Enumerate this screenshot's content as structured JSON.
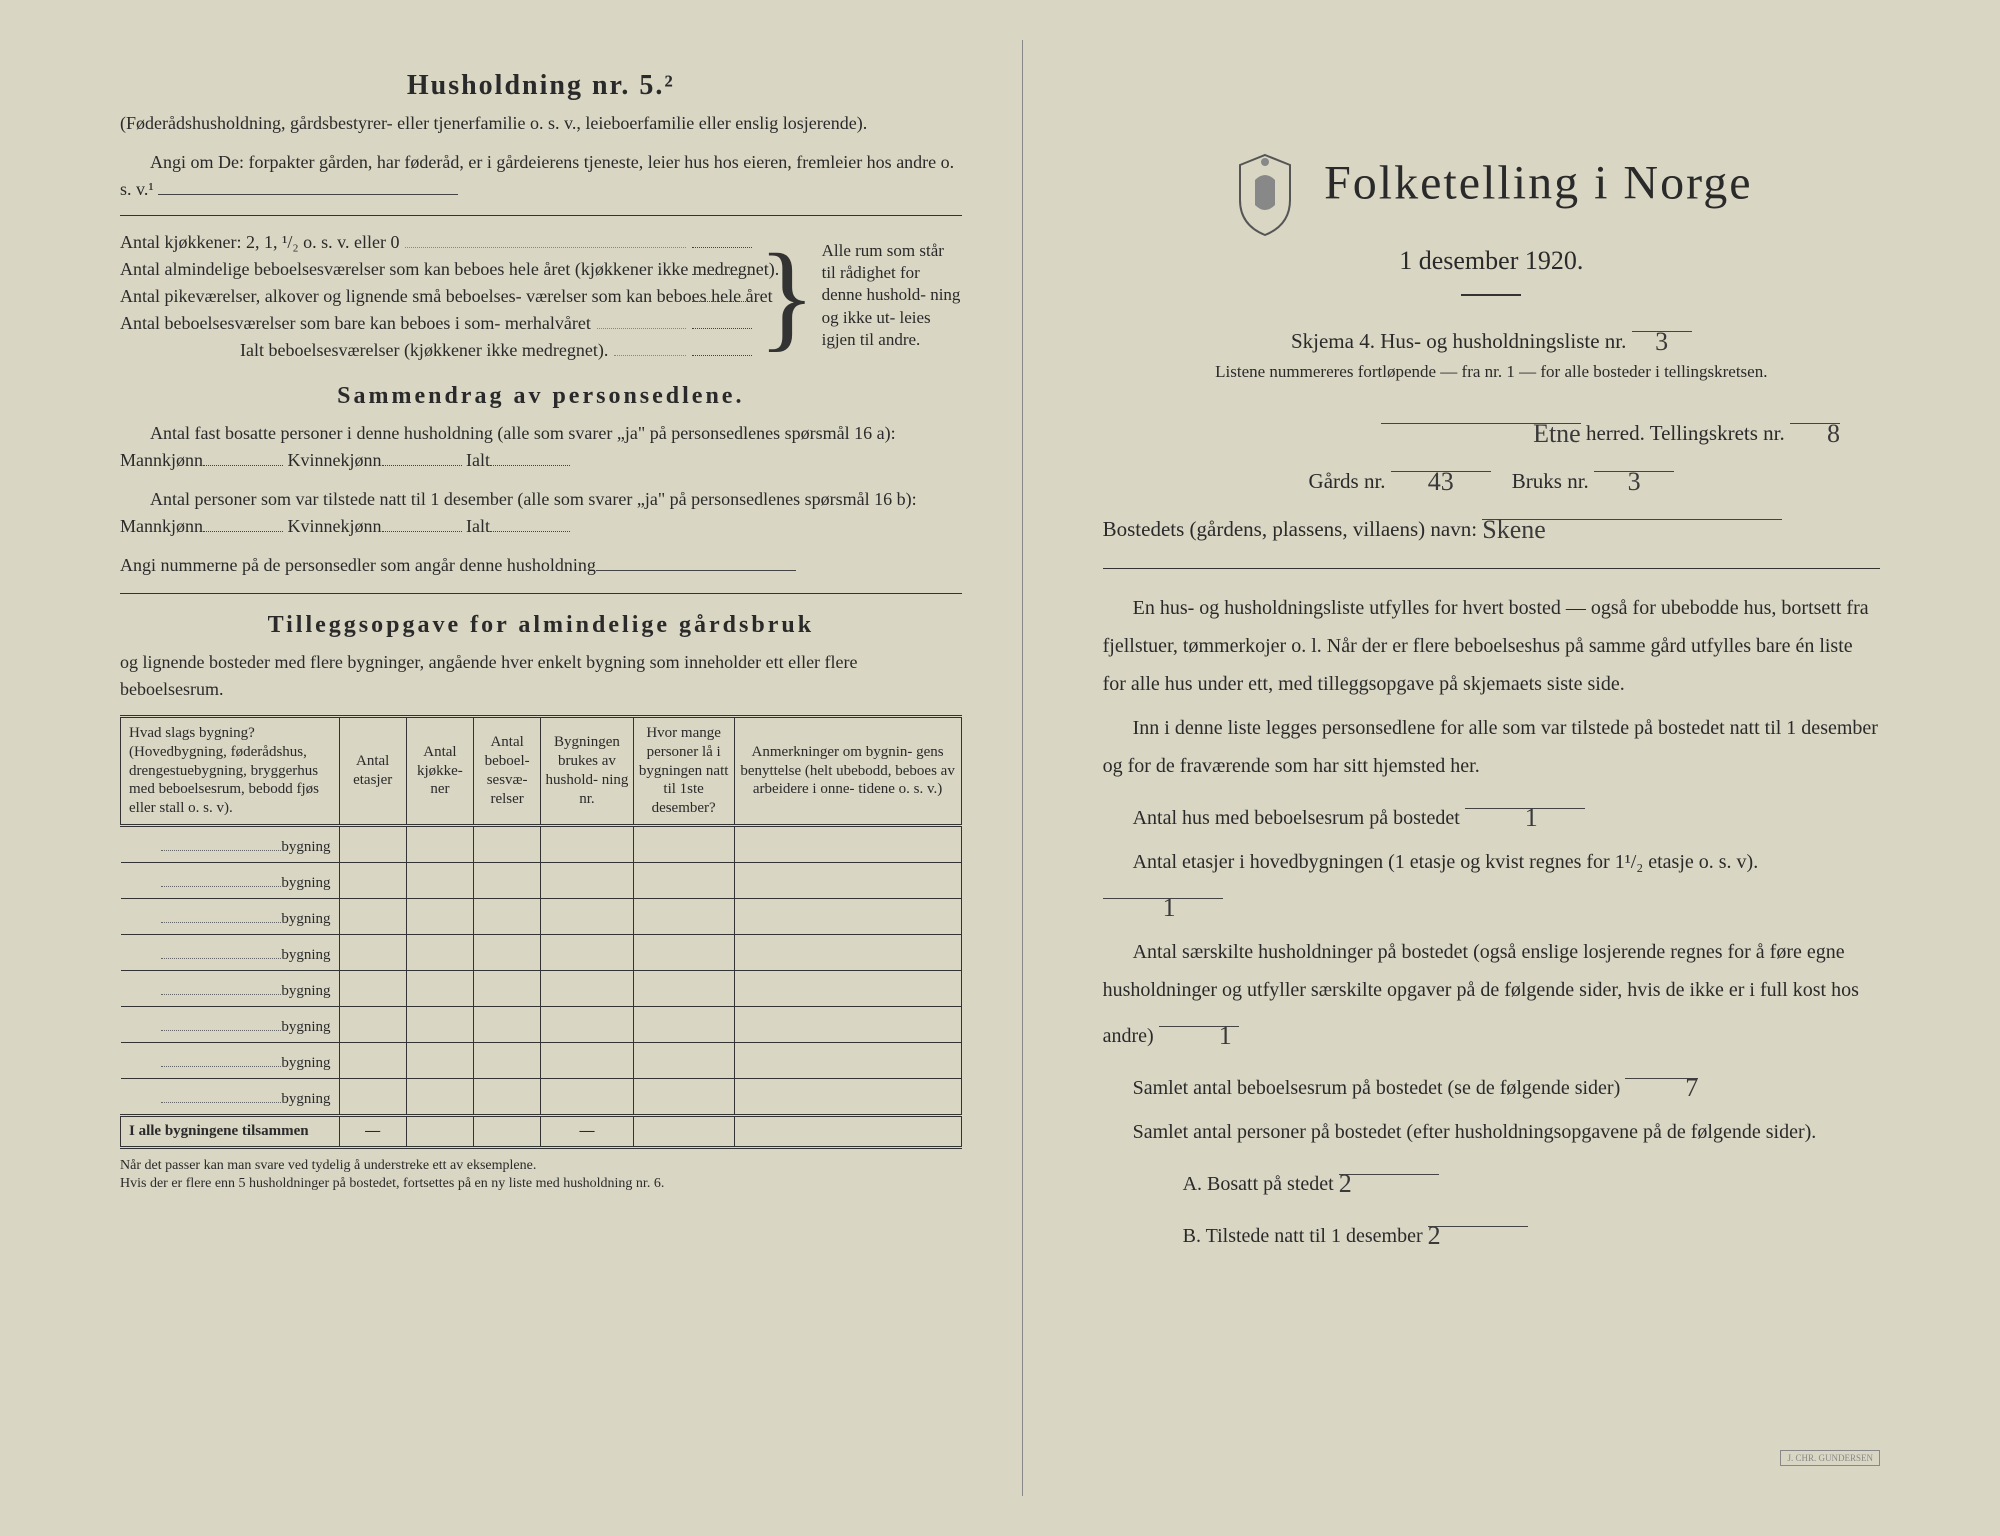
{
  "left": {
    "heading": "Husholdning nr. 5.²",
    "intro1": "(Føderådshusholdning, gårdsbestyrer- eller tjenerfamilie o. s. v., leieboerfamilie eller enslig losjerende).",
    "intro2": "Angi om De:  forpakter gården, har føderåd, er i gårdeierens tjeneste, leier hus hos eieren, fremleier hos andre o. s. v.¹",
    "kitchenRow": "Antal kjøkkener: 2, 1, ¹/₂ o. s. v. eller 0",
    "rooms": [
      "Antal almindelige beboelsesværelser som kan beboes hele året (kjøkkener ikke medregnet).",
      "Antal pikeværelser, alkover og lignende små beboelses- værelser som kan beboes hele året",
      "Antal beboelsesværelser som bare kan beboes i som- merhalvåret"
    ],
    "roomsTotal": "Ialt beboelsesværelser  (kjøkkener ikke medregnet).",
    "braceText": "Alle rum som står til rådighet for denne hushold- ning og ikke ut- leies igjen til andre.",
    "sectionSummary": "Sammendrag av personsedlene.",
    "sum1a": "Antal fast bosatte personer i denne husholdning (alle som svarer „ja\" på personsedlenes spørsmål 16 a): Mannkjønn",
    "sum1b": "Kvinnekjønn",
    "sum1c": "Ialt",
    "sum2a": "Antal personer som var tilstede natt til 1 desember (alle som svarer „ja\" på personsedlenes spørsmål 16 b): Mannkjønn",
    "nums": "Angi nummerne på de personsedler som angår denne husholdning",
    "sectionAddendum": "Tilleggsopgave for almindelige gårdsbruk",
    "addendumSub": "og lignende bosteder med flere bygninger, angående hver enkelt bygning som inneholder ett eller flere beboelsesrum.",
    "tableHeaders": [
      "Hvad slags bygning?\n(Hovedbygning, føderådshus, drengestuebygning, bryggerhus med beboelsesrum, bebodd fjøs eller stall o. s. v).",
      "Antal etasjer",
      "Antal kjøkke- ner",
      "Antal beboel- sesvæ- relser",
      "Bygningen brukes av hushold- ning nr.",
      "Hvor mange personer lå i bygningen natt til 1ste desember?",
      "Anmerkninger om bygnin- gens benyttelse (helt ubebodd, beboes av arbeidere i onne- tidene o. s. v.)"
    ],
    "bygning": "bygning",
    "sumRow": "I alle bygningene tilsammen",
    "foot1": "Når det passer kan man svare ved tydelig å understreke ett av eksemplene.",
    "foot2": "Hvis der er flere enn 5 husholdninger på bostedet, fortsettes på en ny liste med husholdning nr. 6."
  },
  "right": {
    "title": "Folketelling i Norge",
    "date": "1 desember 1920.",
    "skjema": "Skjema 4.  Hus- og husholdningsliste nr.",
    "skjemaNr": "3",
    "listene": "Listene nummereres fortløpende — fra nr. 1 — for alle bosteder i tellingskretsen.",
    "herredLabel": "herred.  Tellingskrets nr.",
    "herred": "Etne",
    "krets": "8",
    "gardLabel": "Gårds nr.",
    "gard": "43",
    "brukLabel": "Bruks nr.",
    "bruk": "3",
    "bostedLabel": "Bostedets (gårdens, plassens, villaens) navn:",
    "bosted": "Skene",
    "para1": "En hus- og husholdningsliste utfylles for hvert bosted — også for ubebodde hus, bortsett fra fjellstuer, tømmerkojer o. l.  Når der er flere beboelseshus på samme gård utfylles bare én liste for alle hus under ett, med tilleggsopgave på skjemaets siste side.",
    "para2": "Inn i denne liste legges personsedlene for alle som var tilstede på bostedet natt til 1 desember og for de fraværende som har sitt hjemsted her.",
    "q1": "Antal hus med beboelsesrum på bostedet",
    "a1": "1",
    "q2a": "Antal etasjer i hovedbygningen (1 etasje og kvist regnes for 1¹/₂ etasje o. s. v).",
    "a2": "1",
    "q3": "Antal særskilte husholdninger på bostedet (også enslige losjerende regnes for å føre egne husholdninger og utfyller særskilte opgaver på de følgende sider, hvis de ikke er i full kost hos andre)",
    "a3": "1",
    "q4": "Samlet antal beboelsesrum på bostedet (se de følgende sider)",
    "a4": "7",
    "q5": "Samlet antal personer på bostedet (efter husholdningsopgavene på de følgende sider).",
    "qA": "A.  Bosatt på stedet",
    "aA": "2",
    "qB": "B.  Tilstede natt til 1 desember",
    "aB": "2"
  }
}
